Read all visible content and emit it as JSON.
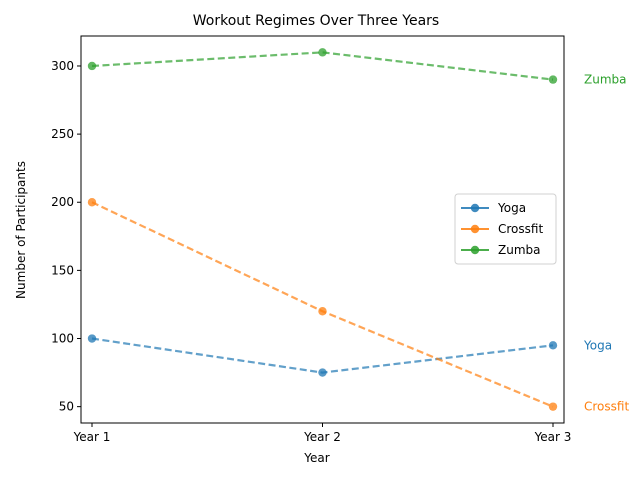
{
  "chart_data": {
    "type": "line",
    "title": "Workout Regimes Over Three Years",
    "xlabel": "Year",
    "ylabel": "Number of Participants",
    "categories": [
      "Year 1",
      "Year 2",
      "Year 3"
    ],
    "ylim": [
      38,
      322
    ],
    "yticks": [
      50,
      100,
      150,
      200,
      250,
      300
    ],
    "grid": false,
    "legend_position": "center-right",
    "line_style": "dashed",
    "marker": "circle",
    "series": [
      {
        "name": "Yoga",
        "values": [
          100,
          75,
          95
        ],
        "color": "#1f77b4",
        "end_label": "Yoga"
      },
      {
        "name": "Crossfit",
        "values": [
          200,
          120,
          50
        ],
        "color": "#ff7f0e",
        "end_label": "Crossfit"
      },
      {
        "name": "Zumba",
        "values": [
          300,
          310,
          290
        ],
        "color": "#2ca02c",
        "end_label": "Zumba"
      }
    ]
  }
}
